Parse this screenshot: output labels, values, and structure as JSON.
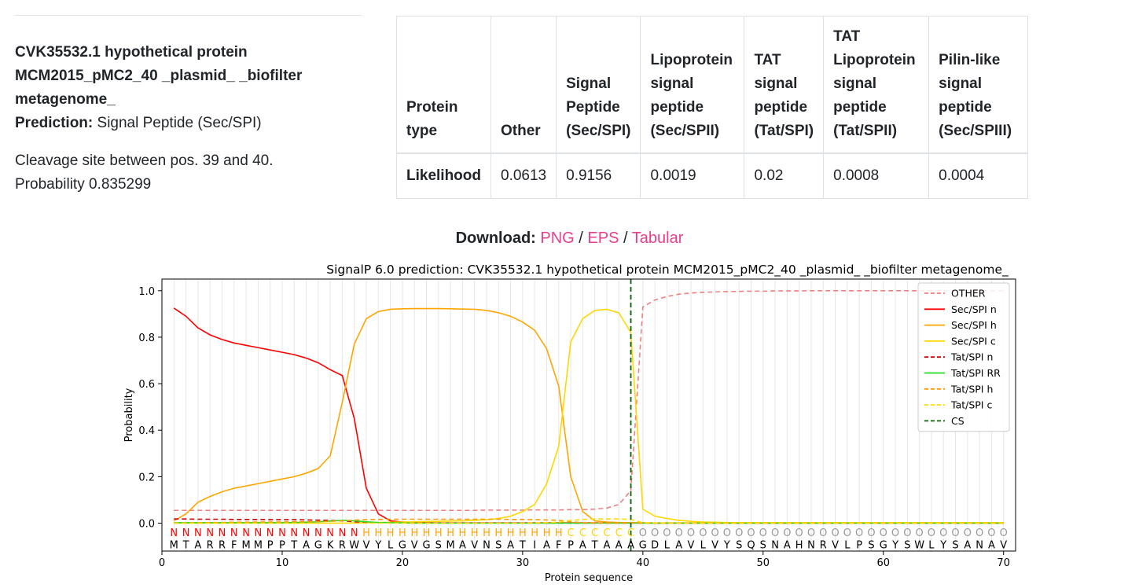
{
  "info": {
    "header": "CVK35532.1 hypothetical protein MCM2015_pMC2_40 _plasmid_ _biofilter metagenome_",
    "prediction_label": "Prediction:",
    "prediction_value": "Signal Peptide (Sec/SPI)",
    "cleavage_text": "Cleavage site between pos. 39 and 40.",
    "probability_text": "Probability 0.835299"
  },
  "table": {
    "headers": [
      "Protein type",
      "Other",
      "Signal Peptide (Sec/SPI)",
      "Lipoprotein signal peptide (Sec/SPII)",
      "TAT signal peptide (Tat/SPI)",
      "TAT Lipoprotein signal peptide (Tat/SPII)",
      "Pilin-like signal peptide (Sec/SPIII)"
    ],
    "row_label": "Likelihood",
    "values": [
      "0.0613",
      "0.9156",
      "0.0019",
      "0.02",
      "0.0008",
      "0.0004"
    ]
  },
  "download": {
    "label": "Download:",
    "links": [
      "PNG",
      "EPS",
      "Tabular"
    ],
    "separator": "/"
  },
  "chart_data": {
    "type": "line",
    "title": "SignalP 6.0 prediction: CVK35532.1 hypothetical protein MCM2015_pMC2_40 _plasmid_ _biofilter metagenome_",
    "xlabel": "Protein sequence",
    "ylabel": "Probability",
    "xlim": [
      0,
      71
    ],
    "ylim": [
      -0.12,
      1.05
    ],
    "xticks": [
      0,
      10,
      20,
      30,
      40,
      50,
      60,
      70
    ],
    "yticks": [
      0.0,
      0.2,
      0.4,
      0.6,
      0.8,
      1.0
    ],
    "legend_position": "top-right",
    "sequence": "MTARRFMMPPTAGKRWVYLGVGSMAVNSATIAFPATAAAGDLAVLVYSQSNAHNRVLPSGYSWLYSANAV",
    "regions": "NNNNNNNNNNNNNNNNHHHHHHHHHHHHHHHHHCCCCCCOOOOOOOOOOOOOOOOOOOOOOOOOOOOOOO",
    "region_colors": {
      "N": "#ff0000",
      "H": "#ffa500",
      "C": "#ffd700",
      "O": "#999999"
    },
    "cleavage_site": 39,
    "series": [
      {
        "name": "OTHER",
        "color": "#f08080",
        "dash": true,
        "values": [
          0.055,
          0.055,
          0.055,
          0.055,
          0.055,
          0.055,
          0.055,
          0.055,
          0.055,
          0.055,
          0.055,
          0.055,
          0.055,
          0.055,
          0.055,
          0.055,
          0.055,
          0.055,
          0.055,
          0.055,
          0.055,
          0.055,
          0.055,
          0.055,
          0.055,
          0.055,
          0.056,
          0.056,
          0.056,
          0.056,
          0.057,
          0.057,
          0.057,
          0.058,
          0.058,
          0.06,
          0.065,
          0.08,
          0.14,
          0.93,
          0.96,
          0.975,
          0.985,
          0.99,
          0.993,
          0.995,
          0.996,
          0.997,
          0.998,
          0.998,
          0.999,
          0.999,
          0.999,
          1.0,
          1.0,
          1.0,
          1.0,
          1.0,
          1.0,
          1.0,
          1.0,
          1.0,
          1.0,
          1.0,
          1.0,
          1.0,
          1.0,
          1.0,
          1.0,
          1.0
        ]
      },
      {
        "name": "Sec/SPI n",
        "color": "#ff0000",
        "dash": false,
        "values": [
          0.925,
          0.89,
          0.84,
          0.81,
          0.79,
          0.775,
          0.765,
          0.755,
          0.745,
          0.735,
          0.725,
          0.71,
          0.69,
          0.66,
          0.635,
          0.45,
          0.15,
          0.04,
          0.01,
          0.005,
          0.003,
          0.002,
          0.001,
          0.001,
          0.001,
          0.001,
          0.001,
          0.001,
          0.001,
          0.001,
          0.001,
          0.001,
          0.001,
          0.001,
          0.001,
          0.001,
          0.001,
          0.001,
          0.001,
          0.001,
          0,
          0,
          0,
          0,
          0,
          0,
          0,
          0,
          0,
          0,
          0,
          0,
          0,
          0,
          0,
          0,
          0,
          0,
          0,
          0,
          0,
          0,
          0,
          0,
          0,
          0,
          0,
          0,
          0,
          0
        ]
      },
      {
        "name": "Sec/SPI h",
        "color": "#ffa500",
        "dash": false,
        "values": [
          0.01,
          0.04,
          0.09,
          0.115,
          0.135,
          0.15,
          0.16,
          0.17,
          0.18,
          0.19,
          0.2,
          0.215,
          0.235,
          0.29,
          0.52,
          0.77,
          0.88,
          0.91,
          0.92,
          0.922,
          0.923,
          0.923,
          0.923,
          0.922,
          0.921,
          0.92,
          0.915,
          0.905,
          0.89,
          0.865,
          0.83,
          0.75,
          0.59,
          0.2,
          0.05,
          0.01,
          0.005,
          0.003,
          0.002,
          0.001,
          0.001,
          0.001,
          0.001,
          0.001,
          0.001,
          0.001,
          0.001,
          0.001,
          0.001,
          0.001,
          0.001,
          0.001,
          0.001,
          0.001,
          0.001,
          0.001,
          0.001,
          0.001,
          0.001,
          0.001,
          0.001,
          0.001,
          0.001,
          0.001,
          0.001,
          0.001,
          0.001,
          0.001,
          0.001,
          0.001
        ]
      },
      {
        "name": "Sec/SPI c",
        "color": "#ffd700",
        "dash": false,
        "values": [
          0,
          0,
          0,
          0,
          0,
          0,
          0,
          0,
          0,
          0,
          0,
          0,
          0,
          0,
          0,
          0.001,
          0.002,
          0.003,
          0.004,
          0.005,
          0.006,
          0.007,
          0.008,
          0.009,
          0.01,
          0.012,
          0.015,
          0.02,
          0.03,
          0.05,
          0.08,
          0.17,
          0.33,
          0.78,
          0.88,
          0.915,
          0.92,
          0.905,
          0.82,
          0.06,
          0.03,
          0.02,
          0.012,
          0.008,
          0.005,
          0.004,
          0.003,
          0.002,
          0.002,
          0.002,
          0.002,
          0.002,
          0.002,
          0.002,
          0.002,
          0.002,
          0.002,
          0.002,
          0.002,
          0.002,
          0.002,
          0.002,
          0.002,
          0.002,
          0.002,
          0.002,
          0.002,
          0.002,
          0.002,
          0.002
        ]
      },
      {
        "name": "Tat/SPI n",
        "color": "#cc0000",
        "dash": true,
        "values": [
          0.018,
          0.018,
          0.017,
          0.017,
          0.017,
          0.016,
          0.016,
          0.016,
          0.015,
          0.015,
          0.015,
          0.014,
          0.013,
          0.012,
          0.01,
          0.006,
          0.003,
          0.002,
          0.001,
          0.001,
          0,
          0,
          0,
          0,
          0,
          0,
          0,
          0,
          0,
          0,
          0,
          0,
          0,
          0,
          0,
          0,
          0,
          0,
          0,
          0,
          0,
          0,
          0,
          0,
          0,
          0,
          0,
          0,
          0,
          0,
          0,
          0,
          0,
          0,
          0,
          0,
          0,
          0,
          0,
          0,
          0,
          0,
          0,
          0,
          0,
          0,
          0,
          0,
          0,
          0
        ]
      },
      {
        "name": "Tat/SPI RR",
        "color": "#22dd22",
        "dash": false,
        "values": [
          0.002,
          0.002,
          0.002,
          0.002,
          0.002,
          0.002,
          0.002,
          0.002,
          0.002,
          0.002,
          0.003,
          0.004,
          0.006,
          0.009,
          0.012,
          0.01,
          0.006,
          0.003,
          0.002,
          0.001,
          0,
          0,
          0,
          0,
          0,
          0,
          0,
          0,
          0,
          0,
          0,
          0,
          0,
          0,
          0,
          0,
          0,
          0,
          0,
          0,
          0,
          0,
          0,
          0,
          0,
          0,
          0,
          0,
          0,
          0,
          0,
          0,
          0,
          0,
          0,
          0,
          0,
          0,
          0,
          0,
          0,
          0,
          0,
          0,
          0,
          0,
          0,
          0,
          0,
          0
        ]
      },
      {
        "name": "Tat/SPI h",
        "color": "#ff9900",
        "dash": true,
        "values": [
          0,
          0.001,
          0.002,
          0.003,
          0.003,
          0.004,
          0.004,
          0.005,
          0.005,
          0.005,
          0.006,
          0.006,
          0.007,
          0.008,
          0.01,
          0.013,
          0.015,
          0.016,
          0.017,
          0.017,
          0.017,
          0.017,
          0.017,
          0.017,
          0.017,
          0.017,
          0.017,
          0.017,
          0.016,
          0.016,
          0.015,
          0.014,
          0.012,
          0.006,
          0.002,
          0.001,
          0,
          0,
          0,
          0,
          0,
          0,
          0,
          0,
          0,
          0,
          0,
          0,
          0,
          0,
          0,
          0,
          0,
          0,
          0,
          0,
          0,
          0,
          0,
          0,
          0,
          0,
          0,
          0,
          0,
          0,
          0,
          0,
          0,
          0
        ]
      },
      {
        "name": "Tat/SPI c",
        "color": "#ffdd00",
        "dash": true,
        "values": [
          0,
          0,
          0,
          0,
          0,
          0,
          0,
          0,
          0,
          0,
          0,
          0,
          0,
          0,
          0,
          0,
          0,
          0,
          0,
          0,
          0,
          0,
          0,
          0,
          0,
          0,
          0,
          0,
          0,
          0,
          0.001,
          0.002,
          0.004,
          0.012,
          0.016,
          0.018,
          0.018,
          0.018,
          0.016,
          0.002,
          0.001,
          0,
          0,
          0,
          0,
          0,
          0,
          0,
          0,
          0,
          0,
          0,
          0,
          0,
          0,
          0,
          0,
          0,
          0,
          0,
          0,
          0,
          0,
          0,
          0,
          0,
          0,
          0,
          0,
          0
        ]
      },
      {
        "name": "CS",
        "color": "#006400",
        "dash": true,
        "values": []
      }
    ]
  }
}
